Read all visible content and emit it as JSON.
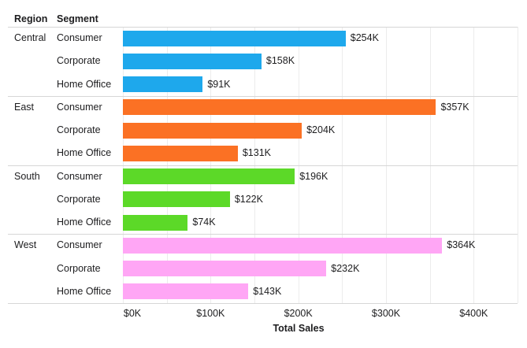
{
  "chart": {
    "region_header": "Region",
    "segment_header": "Segment"
  },
  "chart_data": {
    "type": "bar",
    "orientation": "horizontal",
    "title": "",
    "xlabel": "Total Sales",
    "ylabel": "",
    "xlim": [
      0,
      450
    ],
    "gridline_interval": 50,
    "grid": true,
    "x_ticks": [
      "$0K",
      "$100K",
      "$200K",
      "$300K",
      "$400K"
    ],
    "x_tick_values": [
      0,
      100,
      200,
      300,
      400
    ],
    "groups": [
      {
        "region": "Central",
        "color": "#1EA8EC",
        "segments": [
          {
            "segment": "Consumer",
            "value": 254,
            "label": "$254K"
          },
          {
            "segment": "Corporate",
            "value": 158,
            "label": "$158K"
          },
          {
            "segment": "Home Office",
            "value": 91,
            "label": "$91K"
          }
        ]
      },
      {
        "region": "East",
        "color": "#FB7124",
        "segments": [
          {
            "segment": "Consumer",
            "value": 357,
            "label": "$357K"
          },
          {
            "segment": "Corporate",
            "value": 204,
            "label": "$204K"
          },
          {
            "segment": "Home Office",
            "value": 131,
            "label": "$131K"
          }
        ]
      },
      {
        "region": "South",
        "color": "#5CD928",
        "segments": [
          {
            "segment": "Consumer",
            "value": 196,
            "label": "$196K"
          },
          {
            "segment": "Corporate",
            "value": 122,
            "label": "$122K"
          },
          {
            "segment": "Home Office",
            "value": 74,
            "label": "$74K"
          }
        ]
      },
      {
        "region": "West",
        "color": "#FFA6F5",
        "segments": [
          {
            "segment": "Consumer",
            "value": 364,
            "label": "$364K"
          },
          {
            "segment": "Corporate",
            "value": 232,
            "label": "$232K"
          },
          {
            "segment": "Home Office",
            "value": 143,
            "label": "$143K"
          }
        ]
      }
    ]
  }
}
